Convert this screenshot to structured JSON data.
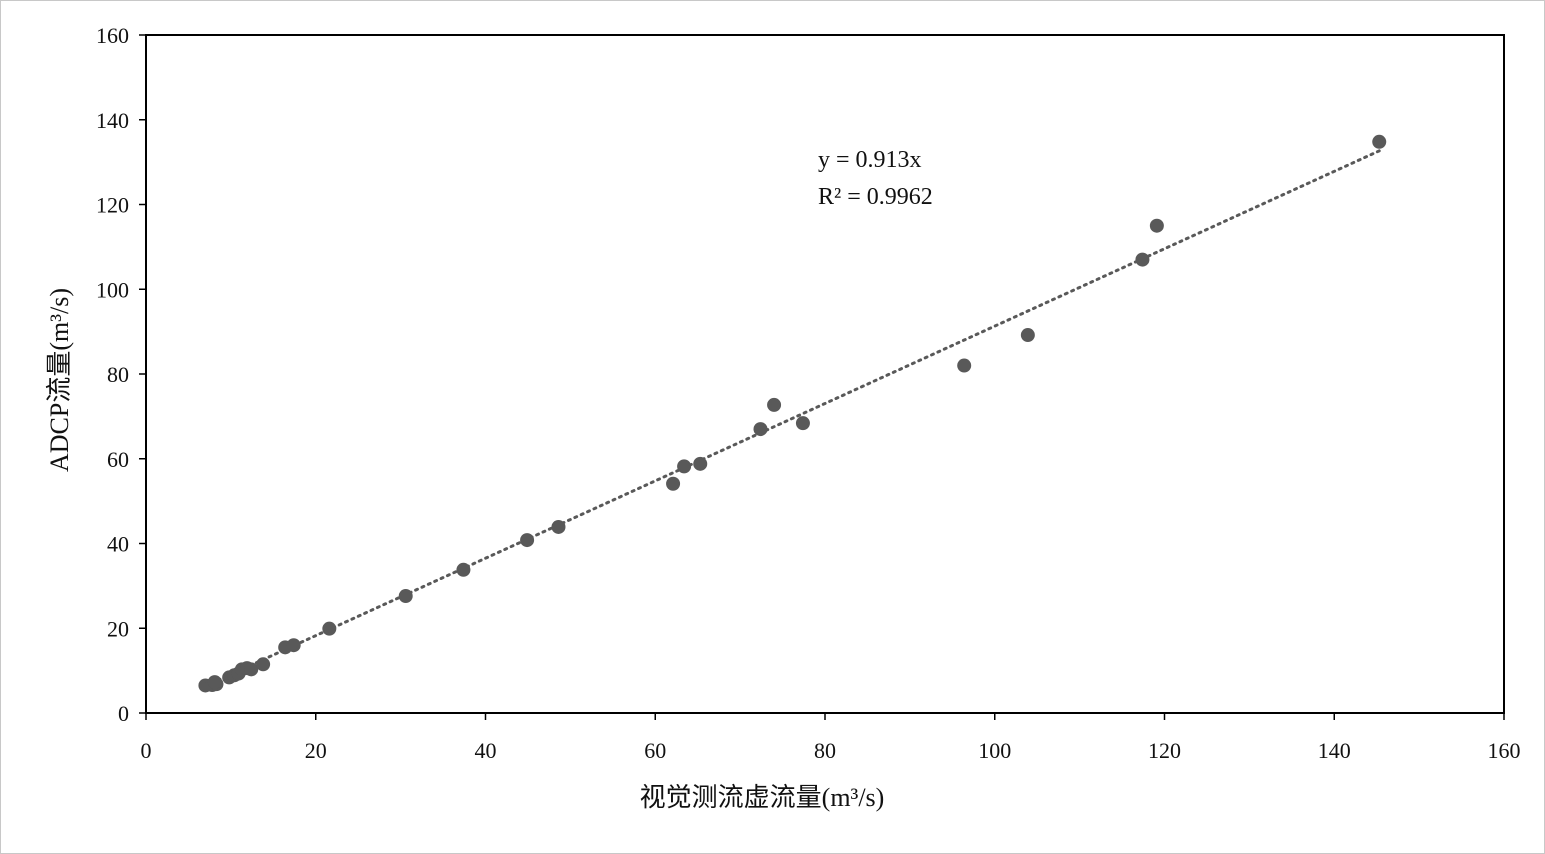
{
  "chart_data": {
    "type": "scatter",
    "xlabel": "视觉测流虚流量(m³/s)",
    "ylabel": "ADCP流量(m³/s)",
    "xlim": [
      0,
      160
    ],
    "ylim": [
      0,
      160
    ],
    "xticks": [
      "0",
      "20",
      "40",
      "60",
      "80",
      "100",
      "120",
      "140",
      "160"
    ],
    "yticks": [
      "0",
      "20",
      "40",
      "60",
      "80",
      "100",
      "120",
      "140",
      "160"
    ],
    "grid": false,
    "colors": {
      "point": "#595959",
      "trendline": "#595959",
      "axis": "#000000"
    },
    "points": [
      [
        7.0,
        6.5
      ],
      [
        7.8,
        6.6
      ],
      [
        8.3,
        6.8
      ],
      [
        8.1,
        7.3
      ],
      [
        9.8,
        8.4
      ],
      [
        10.4,
        8.9
      ],
      [
        10.9,
        9.3
      ],
      [
        11.3,
        10.3
      ],
      [
        11.9,
        10.6
      ],
      [
        12.4,
        10.3
      ],
      [
        13.8,
        11.5
      ],
      [
        16.4,
        15.5
      ],
      [
        17.4,
        16.0
      ],
      [
        21.6,
        19.9
      ],
      [
        30.6,
        27.6
      ],
      [
        37.4,
        33.8
      ],
      [
        44.9,
        40.8
      ],
      [
        48.6,
        43.9
      ],
      [
        62.1,
        54.1
      ],
      [
        63.4,
        58.2
      ],
      [
        65.3,
        58.8
      ],
      [
        72.4,
        67.0
      ],
      [
        74.0,
        72.7
      ],
      [
        77.4,
        68.4
      ],
      [
        96.4,
        82.0
      ],
      [
        103.9,
        89.2
      ],
      [
        117.4,
        107.0
      ],
      [
        119.1,
        115.0
      ],
      [
        145.3,
        134.8
      ]
    ],
    "trendline": {
      "slope": 0.913,
      "intercept": 0,
      "x_range": [
        7.0,
        145.3
      ],
      "style": "dotted"
    },
    "annotations": {
      "equation": "y = 0.913x",
      "r_squared": "R² = 0.9962"
    }
  }
}
